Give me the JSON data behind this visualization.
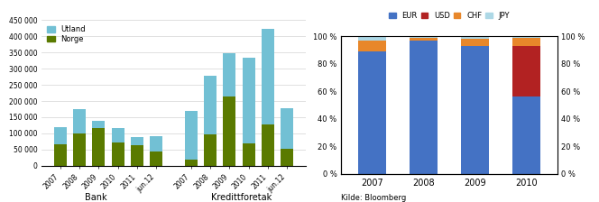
{
  "bank_years": [
    "2007",
    "2008",
    "2009",
    "2010",
    "2011",
    "jun.12"
  ],
  "bank_utland": [
    55000,
    75000,
    25000,
    45000,
    25000,
    48000
  ],
  "bank_norge": [
    65000,
    100000,
    115000,
    72000,
    63000,
    43000
  ],
  "kred_years": [
    "2007",
    "2008",
    "2009",
    "2010",
    "2011",
    "jun.12"
  ],
  "kred_utland": [
    150000,
    182000,
    135000,
    265000,
    295000,
    125000
  ],
  "kred_norge": [
    18000,
    97000,
    213000,
    70000,
    128000,
    53000
  ],
  "ylim": [
    0,
    450000
  ],
  "yticks": [
    0,
    50000,
    100000,
    150000,
    200000,
    250000,
    300000,
    350000,
    400000,
    450000
  ],
  "ytick_labels": [
    "0",
    "50 000",
    "100 000",
    "150 000",
    "200 000",
    "250 000",
    "300 000",
    "350 000",
    "400 000",
    "450 000"
  ],
  "utland_color": "#72C0D4",
  "norge_color": "#5A7A00",
  "eur_color": "#4472C4",
  "usd_color": "#B22222",
  "chf_color": "#E8872A",
  "jpy_color": "#ADD8E6",
  "stacked_years": [
    "2007",
    "2008",
    "2009",
    "2010"
  ],
  "eur_vals": [
    89,
    97,
    93,
    56
  ],
  "usd_vals": [
    0,
    0,
    0,
    37
  ],
  "chf_vals": [
    8,
    2,
    5,
    6
  ],
  "jpy_vals": [
    3,
    1,
    2,
    1
  ],
  "source_text": "Kilde: Bloomberg",
  "bank_label": "Bank",
  "kred_label": "Kredittforetak"
}
